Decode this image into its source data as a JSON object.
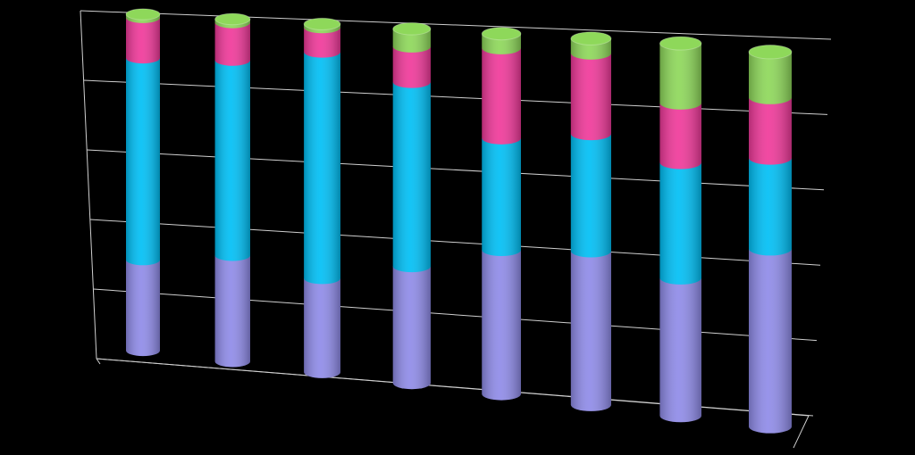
{
  "chart_data": {
    "type": "bar3d_stacked",
    "series": [
      {
        "color": "#8f8be8",
        "values": [
          27,
          31,
          27,
          33,
          40,
          42,
          37,
          47
        ]
      },
      {
        "color": "#00bff5",
        "values": [
          60,
          57,
          65,
          52,
          31,
          32,
          31,
          24
        ]
      },
      {
        "color": "#f0399a",
        "values": [
          12,
          11,
          7,
          10,
          25,
          22,
          16,
          16
        ]
      },
      {
        "color": "#8ed85a",
        "values": [
          1,
          1,
          1,
          5,
          4,
          4,
          16,
          12
        ]
      }
    ],
    "ylim": [
      0,
      100
    ],
    "yticks": [
      0,
      20,
      40,
      60,
      80,
      100
    ],
    "grid": true
  }
}
